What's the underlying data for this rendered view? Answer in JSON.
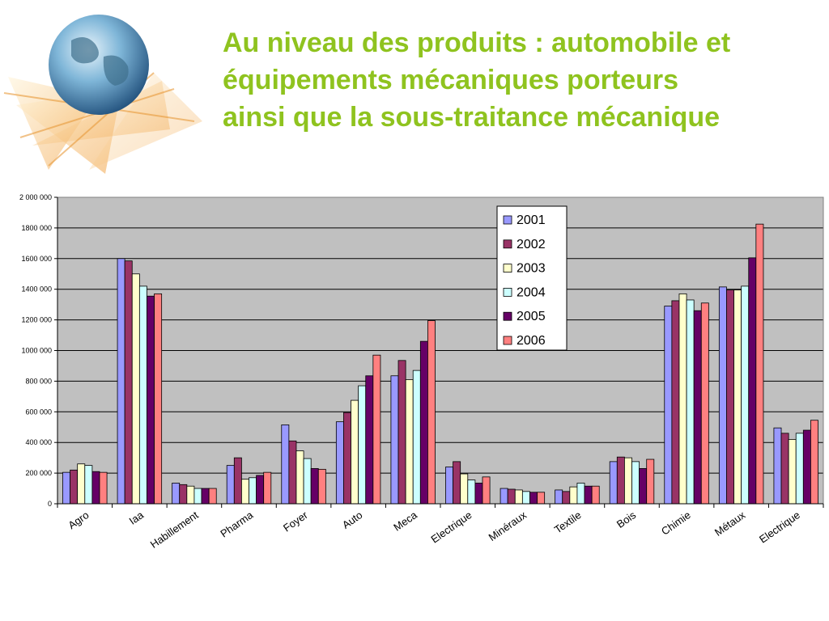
{
  "slide": {
    "title_lines": [
      "Au niveau des produits : automobile et",
      "équipements mécaniques porteurs",
      "ainsi que la sous-traitance mécanique"
    ],
    "title_color": "#8fc31f"
  },
  "logo": {
    "icon": "globe-icon"
  },
  "chart_data": {
    "type": "bar",
    "categories": [
      "Agro",
      "Iaa",
      "Habillement",
      "Pharma",
      "Foyer",
      "Auto",
      "Meca",
      "Electrique",
      "Minéraux",
      "Textile",
      "Bois",
      "Chimie",
      "Métaux",
      "Electrique"
    ],
    "series": [
      {
        "name": "2001",
        "color": "#9999ff",
        "values": [
          205000,
          1600000,
          135000,
          250000,
          515000,
          535000,
          835000,
          240000,
          100000,
          90000,
          275000,
          1290000,
          1415000,
          495000
        ]
      },
      {
        "name": "2002",
        "color": "#993366",
        "values": [
          220000,
          1585000,
          125000,
          300000,
          410000,
          595000,
          935000,
          275000,
          95000,
          80000,
          305000,
          1325000,
          1395000,
          460000
        ]
      },
      {
        "name": "2003",
        "color": "#ffffcc",
        "values": [
          260000,
          1500000,
          115000,
          160000,
          345000,
          675000,
          810000,
          195000,
          90000,
          110000,
          300000,
          1370000,
          1395000,
          420000
        ]
      },
      {
        "name": "2004",
        "color": "#ccffff",
        "values": [
          250000,
          1420000,
          100000,
          170000,
          295000,
          770000,
          870000,
          155000,
          80000,
          135000,
          275000,
          1330000,
          1420000,
          460000
        ]
      },
      {
        "name": "2005",
        "color": "#660066",
        "values": [
          210000,
          1355000,
          100000,
          185000,
          230000,
          835000,
          1060000,
          135000,
          75000,
          115000,
          230000,
          1260000,
          1605000,
          480000
        ]
      },
      {
        "name": "2006",
        "color": "#ff8080",
        "values": [
          205000,
          1370000,
          100000,
          205000,
          225000,
          970000,
          1195000,
          175000,
          75000,
          115000,
          290000,
          1310000,
          1825000,
          545000
        ]
      }
    ],
    "ylim": [
      0,
      2000000
    ],
    "yticks": [
      0,
      200000,
      400000,
      600000,
      800000,
      1000000,
      1200000,
      1400000,
      1600000,
      1800000,
      2000000
    ],
    "ytick_labels": [
      "0",
      "200 000",
      "400 000",
      "600 000",
      "800 000",
      "1000 000",
      "1200 000",
      "1400 000",
      "1600 000",
      "1800 000",
      "2 000 000"
    ],
    "plot_background": "#c0c0c0",
    "grid": true,
    "legend": "top-right",
    "xlabel": "",
    "ylabel": ""
  }
}
